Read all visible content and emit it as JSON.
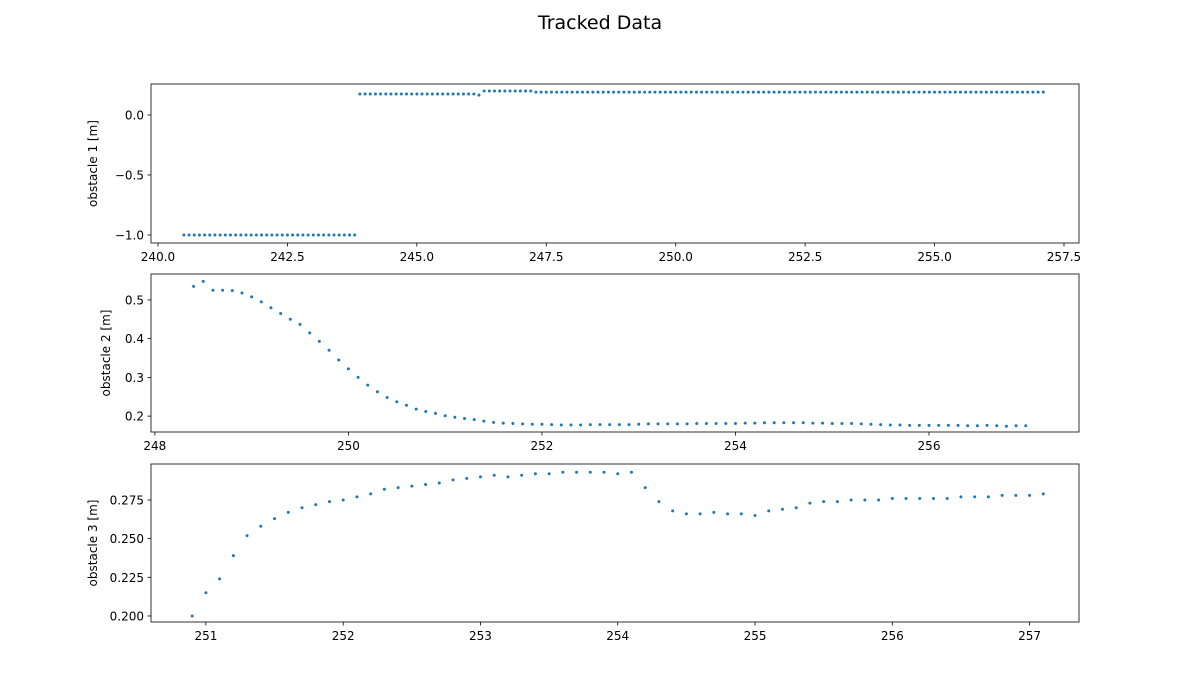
{
  "title": "Tracked Data",
  "chart_data": [
    {
      "type": "scatter",
      "ylabel": "obstacle 1 [m]",
      "color": "#1f77b4",
      "xlim": [
        239.865,
        257.79
      ],
      "ylim": [
        -1.067,
        0.258
      ],
      "xticks": [
        {
          "value": 240,
          "label": "240.0"
        },
        242.5,
        {
          "value": 245,
          "label": "245.0"
        },
        247.5,
        {
          "value": 250,
          "label": "250.0"
        },
        252.5,
        {
          "value": 255,
          "label": "255.0"
        },
        257.5
      ],
      "yticks": [
        {
          "value": -1,
          "label": "−1.0"
        },
        {
          "value": -0.5,
          "label": "−0.5"
        },
        {
          "value": 0,
          "label": "0.0"
        }
      ],
      "x": [
        240.5,
        240.6,
        240.7,
        240.8,
        240.9,
        241.0,
        241.1,
        241.2,
        241.3,
        241.4,
        241.5,
        241.6,
        241.7,
        241.8,
        241.9,
        242.0,
        242.1,
        242.2,
        242.3,
        242.4,
        242.5,
        242.6,
        242.7,
        242.8,
        242.9,
        243.0,
        243.1,
        243.2,
        243.3,
        243.4,
        243.5,
        243.6,
        243.7,
        243.8,
        243.9,
        244.0,
        244.1,
        244.2,
        244.3,
        244.4,
        244.5,
        244.6,
        244.7,
        244.8,
        244.9,
        245.0,
        245.1,
        245.2,
        245.3,
        245.4,
        245.5,
        245.6,
        245.7,
        245.8,
        245.9,
        246.0,
        246.1,
        246.2,
        246.3,
        246.4,
        246.5,
        246.6,
        246.7,
        246.8,
        246.9,
        247.0,
        247.1,
        247.2,
        247.3,
        247.4,
        247.5,
        247.6,
        247.7,
        247.8,
        247.9,
        248.0,
        248.1,
        248.2,
        248.3,
        248.4,
        248.5,
        248.6,
        248.7,
        248.8,
        248.9,
        249.0,
        249.1,
        249.2,
        249.3,
        249.4,
        249.5,
        249.6,
        249.7,
        249.8,
        249.9,
        250.0,
        250.1,
        250.2,
        250.3,
        250.4,
        250.5,
        250.6,
        250.7,
        250.8,
        250.9,
        251.0,
        251.1,
        251.2,
        251.3,
        251.4,
        251.5,
        251.6,
        251.7,
        251.8,
        251.9,
        252.0,
        252.1,
        252.2,
        252.3,
        252.4,
        252.5,
        252.6,
        252.7,
        252.8,
        252.9,
        253.0,
        253.1,
        253.2,
        253.3,
        253.4,
        253.5,
        253.6,
        253.7,
        253.8,
        253.9,
        254.0,
        254.1,
        254.2,
        254.3,
        254.4,
        254.5,
        254.6,
        254.7,
        254.8,
        254.9,
        255.0,
        255.1,
        255.2,
        255.3,
        255.4,
        255.5,
        255.6,
        255.7,
        255.8,
        255.9,
        256.0,
        256.1,
        256.2,
        256.3,
        256.4,
        256.5,
        256.6,
        256.7,
        256.8,
        256.9,
        257.0,
        257.1
      ],
      "values": [
        -1,
        -1,
        -1,
        -1,
        -1,
        -1,
        -1,
        -1,
        -1,
        -1,
        -1,
        -1,
        -1,
        -1,
        -1,
        -1,
        -1,
        -1,
        -1,
        -1,
        -1,
        -1,
        -1,
        -1,
        -1,
        -1,
        -1,
        -1,
        -1,
        -1,
        -1,
        -1,
        -1,
        -1,
        0.175,
        0.175,
        0.175,
        0.175,
        0.175,
        0.175,
        0.175,
        0.175,
        0.175,
        0.175,
        0.175,
        0.175,
        0.175,
        0.175,
        0.175,
        0.175,
        0.175,
        0.175,
        0.175,
        0.175,
        0.175,
        0.175,
        0.175,
        0.165,
        0.2,
        0.2,
        0.2,
        0.2,
        0.2,
        0.2,
        0.2,
        0.2,
        0.2,
        0.2,
        0.19,
        0.19,
        0.19,
        0.19,
        0.19,
        0.19,
        0.19,
        0.19,
        0.19,
        0.19,
        0.19,
        0.19,
        0.19,
        0.19,
        0.19,
        0.19,
        0.19,
        0.19,
        0.19,
        0.19,
        0.19,
        0.19,
        0.19,
        0.19,
        0.19,
        0.19,
        0.19,
        0.19,
        0.19,
        0.19,
        0.19,
        0.19,
        0.19,
        0.19,
        0.19,
        0.19,
        0.19,
        0.19,
        0.19,
        0.19,
        0.19,
        0.19,
        0.19,
        0.19,
        0.19,
        0.19,
        0.19,
        0.19,
        0.19,
        0.19,
        0.19,
        0.19,
        0.19,
        0.19,
        0.19,
        0.19,
        0.19,
        0.19,
        0.19,
        0.19,
        0.19,
        0.19,
        0.19,
        0.19,
        0.19,
        0.19,
        0.19,
        0.19,
        0.19,
        0.19,
        0.19,
        0.19,
        0.19,
        0.19,
        0.19,
        0.19,
        0.19,
        0.19,
        0.19,
        0.19,
        0.19,
        0.19,
        0.19,
        0.19,
        0.19,
        0.19,
        0.19,
        0.19,
        0.19,
        0.19,
        0.19,
        0.19,
        0.19,
        0.19,
        0.19,
        0.19,
        0.19,
        0.19,
        0.19
      ]
    },
    {
      "type": "scatter",
      "ylabel": "obstacle 2 [m]",
      "color": "#1f77b4",
      "xlim": [
        247.96,
        257.55
      ],
      "ylim": [
        0.159,
        0.567
      ],
      "xticks": [
        248,
        250,
        252,
        254,
        256
      ],
      "yticks": [
        0.2,
        0.3,
        0.4,
        0.5
      ],
      "x": [
        248.4,
        248.5,
        248.6,
        248.7,
        248.8,
        248.9,
        249.0,
        249.1,
        249.2,
        249.3,
        249.4,
        249.5,
        249.6,
        249.7,
        249.8,
        249.9,
        250.0,
        250.1,
        250.2,
        250.3,
        250.4,
        250.5,
        250.6,
        250.7,
        250.8,
        250.9,
        251.0,
        251.1,
        251.2,
        251.3,
        251.4,
        251.5,
        251.6,
        251.7,
        251.8,
        251.9,
        252.0,
        252.1,
        252.2,
        252.3,
        252.4,
        252.5,
        252.6,
        252.7,
        252.8,
        252.9,
        253.0,
        253.1,
        253.2,
        253.3,
        253.4,
        253.5,
        253.6,
        253.7,
        253.8,
        253.9,
        254.0,
        254.1,
        254.2,
        254.3,
        254.4,
        254.5,
        254.6,
        254.7,
        254.8,
        254.9,
        255.0,
        255.1,
        255.2,
        255.3,
        255.4,
        255.5,
        255.6,
        255.7,
        255.8,
        255.9,
        256.0,
        256.1,
        256.2,
        256.3,
        256.4,
        256.5,
        256.6,
        256.7,
        256.8,
        256.9,
        257.0
      ],
      "values": [
        0.535,
        0.548,
        0.525,
        0.525,
        0.524,
        0.518,
        0.508,
        0.495,
        0.48,
        0.465,
        0.45,
        0.437,
        0.415,
        0.393,
        0.37,
        0.345,
        0.322,
        0.3,
        0.28,
        0.263,
        0.248,
        0.237,
        0.228,
        0.218,
        0.212,
        0.207,
        0.201,
        0.197,
        0.194,
        0.191,
        0.187,
        0.184,
        0.182,
        0.181,
        0.18,
        0.179,
        0.179,
        0.178,
        0.177,
        0.177,
        0.177,
        0.178,
        0.178,
        0.178,
        0.178,
        0.178,
        0.179,
        0.18,
        0.18,
        0.18,
        0.18,
        0.18,
        0.181,
        0.181,
        0.181,
        0.181,
        0.181,
        0.182,
        0.182,
        0.183,
        0.183,
        0.183,
        0.183,
        0.183,
        0.182,
        0.182,
        0.181,
        0.181,
        0.181,
        0.18,
        0.179,
        0.178,
        0.177,
        0.177,
        0.176,
        0.176,
        0.176,
        0.176,
        0.176,
        0.176,
        0.175,
        0.175,
        0.176,
        0.175,
        0.174,
        0.175,
        0.175
      ]
    },
    {
      "type": "scatter",
      "ylabel": "obstacle 3 [m]",
      "color": "#1f77b4",
      "xlim": [
        250.6,
        257.36
      ],
      "ylim": [
        0.1961,
        0.2983
      ],
      "xticks": [
        251,
        252,
        253,
        254,
        255,
        256,
        257
      ],
      "yticks": [
        {
          "value": 0.2,
          "label": "0.200"
        },
        0.225,
        {
          "value": 0.25,
          "label": "0.250"
        },
        0.275
      ],
      "x": [
        250.9,
        251.0,
        251.1,
        251.2,
        251.3,
        251.4,
        251.5,
        251.6,
        251.7,
        251.8,
        251.9,
        252.0,
        252.1,
        252.2,
        252.3,
        252.4,
        252.5,
        252.6,
        252.7,
        252.8,
        252.9,
        253.0,
        253.1,
        253.2,
        253.3,
        253.4,
        253.5,
        253.6,
        253.7,
        253.8,
        253.9,
        254.0,
        254.1,
        254.2,
        254.3,
        254.4,
        254.5,
        254.6,
        254.7,
        254.8,
        254.9,
        255.0,
        255.1,
        255.2,
        255.3,
        255.4,
        255.5,
        255.6,
        255.7,
        255.8,
        255.9,
        256.0,
        256.1,
        256.2,
        256.3,
        256.4,
        256.5,
        256.6,
        256.7,
        256.8,
        256.9,
        257.0,
        257.1
      ],
      "values": [
        0.2,
        0.215,
        0.224,
        0.239,
        0.252,
        0.258,
        0.263,
        0.267,
        0.27,
        0.272,
        0.274,
        0.275,
        0.277,
        0.279,
        0.282,
        0.283,
        0.284,
        0.285,
        0.286,
        0.288,
        0.289,
        0.29,
        0.291,
        0.29,
        0.291,
        0.292,
        0.292,
        0.293,
        0.293,
        0.293,
        0.293,
        0.292,
        0.293,
        0.283,
        0.274,
        0.268,
        0.266,
        0.266,
        0.267,
        0.266,
        0.266,
        0.265,
        0.268,
        0.269,
        0.27,
        0.273,
        0.274,
        0.274,
        0.275,
        0.275,
        0.275,
        0.276,
        0.276,
        0.276,
        0.276,
        0.276,
        0.277,
        0.277,
        0.277,
        0.278,
        0.278,
        0.278,
        0.279
      ]
    }
  ]
}
